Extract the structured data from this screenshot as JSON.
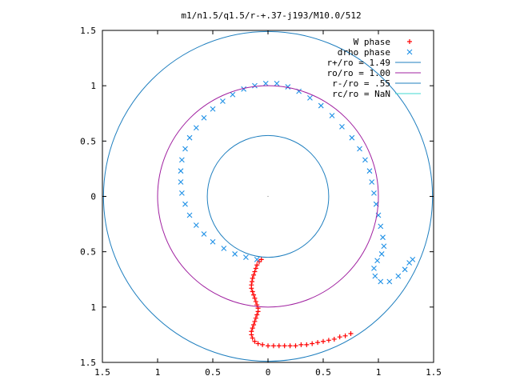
{
  "chart_data": {
    "type": "scatter",
    "title": "m1/n1.5/q1.5/r-+.37-j193/M10.0/512",
    "xlabel": "",
    "ylabel": "",
    "xlim": [
      -1.5,
      1.5
    ],
    "ylim": [
      -1.5,
      1.5
    ],
    "grid": false,
    "legend_position": "top-right",
    "x_tick_labels": [
      "1.5",
      "1",
      "0.5",
      "0",
      "0.5",
      "1",
      "1.5"
    ],
    "x_tick_values": [
      -1.5,
      -1,
      -0.5,
      0,
      0.5,
      1,
      1.5
    ],
    "y_tick_labels": [
      "1.5",
      "1",
      "0.5",
      "0",
      "0.5",
      "1",
      "1.5"
    ],
    "y_tick_values": [
      1.5,
      1,
      0.5,
      0,
      -0.5,
      -1,
      -1.5
    ],
    "series": [
      {
        "name": "W phase",
        "kind": "points",
        "marker": "plus",
        "color": "#ff0000",
        "points": [
          [
            -0.06,
            -0.57
          ],
          [
            -0.08,
            -0.59
          ],
          [
            -0.1,
            -0.62
          ],
          [
            -0.11,
            -0.65
          ],
          [
            -0.12,
            -0.68
          ],
          [
            -0.13,
            -0.71
          ],
          [
            -0.14,
            -0.74
          ],
          [
            -0.145,
            -0.77
          ],
          [
            -0.15,
            -0.8
          ],
          [
            -0.15,
            -0.83
          ],
          [
            -0.14,
            -0.86
          ],
          [
            -0.13,
            -0.89
          ],
          [
            -0.12,
            -0.92
          ],
          [
            -0.11,
            -0.95
          ],
          [
            -0.1,
            -0.98
          ],
          [
            -0.09,
            -1.01
          ],
          [
            -0.09,
            -1.04
          ],
          [
            -0.1,
            -1.07
          ],
          [
            -0.11,
            -1.1
          ],
          [
            -0.12,
            -1.13
          ],
          [
            -0.13,
            -1.16
          ],
          [
            -0.14,
            -1.19
          ],
          [
            -0.15,
            -1.22
          ],
          [
            -0.15,
            -1.25
          ],
          [
            -0.14,
            -1.28
          ],
          [
            -0.12,
            -1.31
          ],
          [
            -0.09,
            -1.33
          ],
          [
            -0.05,
            -1.34
          ],
          [
            0.0,
            -1.35
          ],
          [
            0.05,
            -1.35
          ],
          [
            0.1,
            -1.35
          ],
          [
            0.15,
            -1.35
          ],
          [
            0.2,
            -1.35
          ],
          [
            0.25,
            -1.35
          ],
          [
            0.3,
            -1.34
          ],
          [
            0.35,
            -1.34
          ],
          [
            0.4,
            -1.33
          ],
          [
            0.45,
            -1.32
          ],
          [
            0.5,
            -1.31
          ],
          [
            0.55,
            -1.3
          ],
          [
            0.6,
            -1.29
          ],
          [
            0.65,
            -1.27
          ],
          [
            0.7,
            -1.26
          ],
          [
            0.75,
            -1.24
          ]
        ]
      },
      {
        "name": "drho phase",
        "kind": "points",
        "marker": "cross",
        "color": "#1e90e6",
        "points": [
          [
            -0.1,
            -0.57
          ],
          [
            -0.2,
            -0.55
          ],
          [
            -0.3,
            -0.52
          ],
          [
            -0.4,
            -0.47
          ],
          [
            -0.5,
            -0.41
          ],
          [
            -0.58,
            -0.34
          ],
          [
            -0.65,
            -0.26
          ],
          [
            -0.71,
            -0.17
          ],
          [
            -0.75,
            -0.07
          ],
          [
            -0.78,
            0.03
          ],
          [
            -0.79,
            0.13
          ],
          [
            -0.79,
            0.23
          ],
          [
            -0.78,
            0.33
          ],
          [
            -0.75,
            0.43
          ],
          [
            -0.71,
            0.53
          ],
          [
            -0.65,
            0.62
          ],
          [
            -0.58,
            0.71
          ],
          [
            -0.5,
            0.79
          ],
          [
            -0.41,
            0.86
          ],
          [
            -0.32,
            0.92
          ],
          [
            -0.22,
            0.97
          ],
          [
            -0.12,
            1.0
          ],
          [
            -0.02,
            1.02
          ],
          [
            0.08,
            1.02
          ],
          [
            0.18,
            0.99
          ],
          [
            0.28,
            0.95
          ],
          [
            0.38,
            0.89
          ],
          [
            0.48,
            0.82
          ],
          [
            0.58,
            0.73
          ],
          [
            0.67,
            0.63
          ],
          [
            0.76,
            0.53
          ],
          [
            0.83,
            0.43
          ],
          [
            0.88,
            0.33
          ],
          [
            0.92,
            0.23
          ],
          [
            0.94,
            0.13
          ],
          [
            0.96,
            0.03
          ],
          [
            0.98,
            -0.07
          ],
          [
            1.0,
            -0.17
          ],
          [
            1.02,
            -0.27
          ],
          [
            1.04,
            -0.37
          ],
          [
            1.05,
            -0.45
          ],
          [
            1.03,
            -0.52
          ],
          [
            0.99,
            -0.58
          ],
          [
            0.96,
            -0.65
          ],
          [
            0.97,
            -0.72
          ],
          [
            1.02,
            -0.77
          ],
          [
            1.1,
            -0.77
          ],
          [
            1.18,
            -0.72
          ],
          [
            1.24,
            -0.66
          ],
          [
            1.28,
            -0.6
          ],
          [
            1.31,
            -0.57
          ]
        ]
      },
      {
        "name": "r+/ro = 1.49",
        "kind": "circle",
        "radius": 1.49,
        "color": "#1f7fbf"
      },
      {
        "name": "ro/ro = 1.00",
        "kind": "circle",
        "radius": 1.0,
        "color": "#a020a0"
      },
      {
        "name": "r-/ro = .55",
        "kind": "circle",
        "radius": 0.55,
        "color": "#1f7fbf"
      },
      {
        "name": "rc/ro = NaN",
        "kind": "circle",
        "radius": null,
        "color": "#40d8d0"
      }
    ]
  }
}
